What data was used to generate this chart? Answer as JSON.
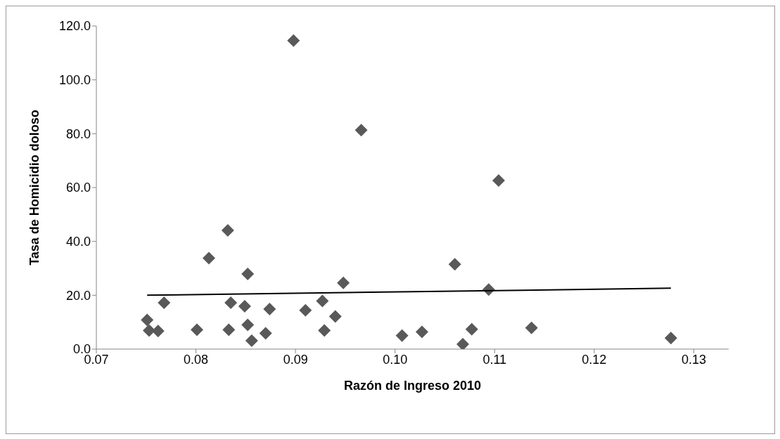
{
  "chart_data": {
    "type": "scatter",
    "xlabel": "Razón de Ingreso 2010",
    "ylabel": "Tasa de Homicidio doloso",
    "xlim": [
      0.07,
      0.1335
    ],
    "xticks": [
      {
        "value": 0.07,
        "label": "0.07"
      },
      {
        "value": 0.08,
        "label": "0.08"
      },
      {
        "value": 0.09,
        "label": "0.09"
      },
      {
        "value": 0.1,
        "label": "0.10"
      },
      {
        "value": 0.11,
        "label": "0.11"
      },
      {
        "value": 0.12,
        "label": "0.12"
      },
      {
        "value": 0.13,
        "label": "0.13"
      }
    ],
    "ylim": [
      0,
      120
    ],
    "yticks": [
      {
        "value": 0,
        "label": "0.0"
      },
      {
        "value": 20,
        "label": "20.0"
      },
      {
        "value": 40,
        "label": "40.0"
      },
      {
        "value": 60,
        "label": "60.0"
      },
      {
        "value": 80,
        "label": "80.0"
      },
      {
        "value": 100,
        "label": "100.0"
      },
      {
        "value": 120,
        "label": "120.0"
      }
    ],
    "marker": "diamond",
    "series": [
      {
        "color": "#595959",
        "x": [
          0.0751,
          0.0753,
          0.0762,
          0.0768,
          0.0801,
          0.0813,
          0.0832,
          0.0833,
          0.0835,
          0.0849,
          0.0852,
          0.0852,
          0.0856,
          0.087,
          0.0874,
          0.0898,
          0.091,
          0.0927,
          0.0929,
          0.094,
          0.0948,
          0.0966,
          0.1007,
          0.1027,
          0.106,
          0.1068,
          0.1077,
          0.1094,
          0.1104,
          0.1137,
          0.1277
        ],
        "values": [
          10.8,
          6.9,
          6.7,
          17.2,
          7.2,
          33.8,
          44.1,
          7.2,
          17.2,
          15.9,
          27.9,
          9.0,
          3.1,
          5.9,
          14.9,
          114.6,
          14.4,
          17.9,
          6.9,
          12.1,
          24.6,
          81.3,
          5.0,
          6.4,
          31.5,
          1.8,
          7.4,
          22.1,
          62.6,
          7.9,
          4.1
        ]
      },
      {
        "type": "line",
        "color": "#000000",
        "marker": "none",
        "x": [
          0.0751,
          0.1277
        ],
        "values": [
          20.0,
          22.6
        ]
      }
    ]
  }
}
